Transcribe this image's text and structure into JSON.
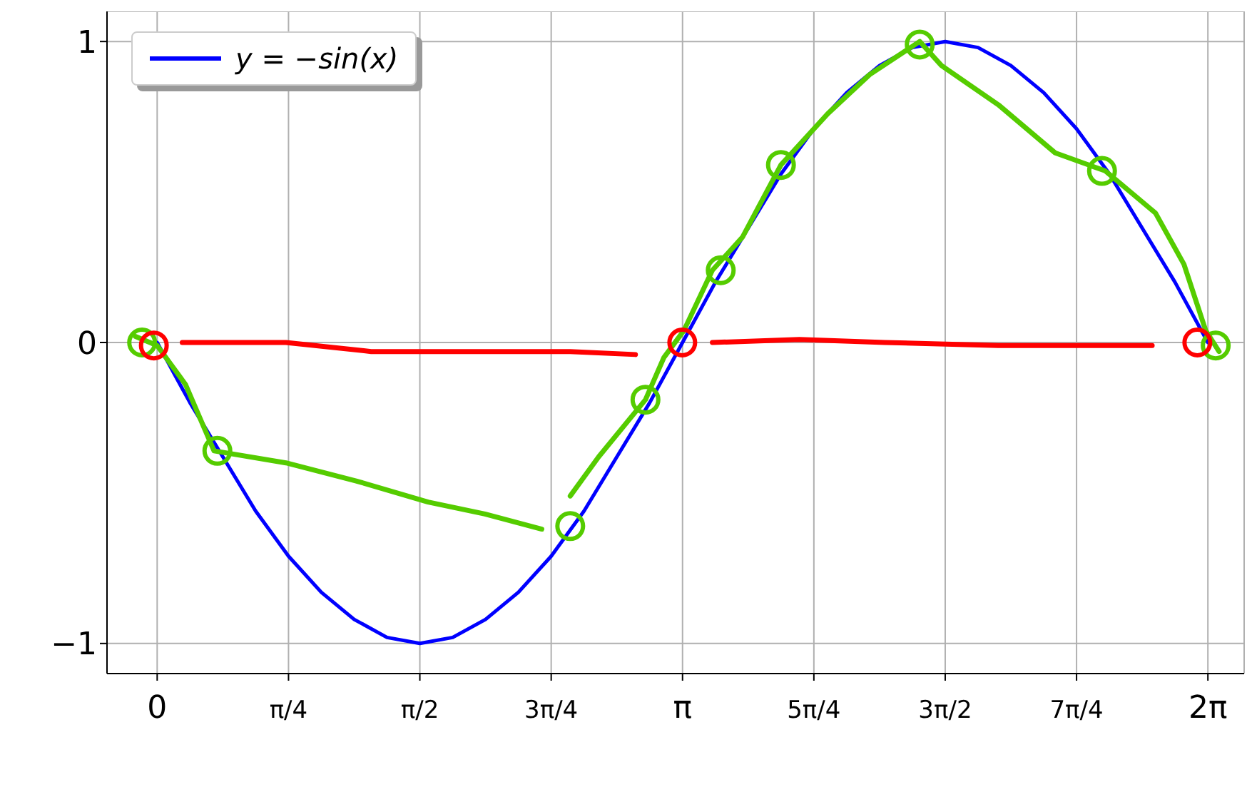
{
  "chart_data": {
    "type": "line",
    "xlim": [
      -0.3,
      6.5
    ],
    "ylim": [
      -1.1,
      1.1
    ],
    "xticks": [
      {
        "value": 0,
        "label": "0"
      },
      {
        "value": 0.7854,
        "label": "π/4"
      },
      {
        "value": 1.5708,
        "label": "π/2"
      },
      {
        "value": 2.3562,
        "label": "3π/4"
      },
      {
        "value": 3.1416,
        "label": "π"
      },
      {
        "value": 3.927,
        "label": "5π/4"
      },
      {
        "value": 4.7124,
        "label": "3π/2"
      },
      {
        "value": 5.4978,
        "label": "7π/4"
      },
      {
        "value": 6.2832,
        "label": "2π"
      }
    ],
    "yticks": [
      {
        "value": -1,
        "label": "−1"
      },
      0,
      1
    ],
    "grid": true,
    "legend": "top left",
    "marker": "none",
    "line_style": "solid",
    "series": [
      {
        "name": "y = −sin(x)",
        "type": "line",
        "color": "#0000ff",
        "x": [
          0,
          0.1963,
          0.3927,
          0.589,
          0.7854,
          0.9817,
          1.1781,
          1.3744,
          1.5708,
          1.7671,
          1.9635,
          2.1598,
          2.3562,
          2.5525,
          2.7489,
          2.9452,
          3.1416,
          3.3379,
          3.5343,
          3.7306,
          3.927,
          4.1233,
          4.3197,
          4.516,
          4.7124,
          4.9087,
          5.1051,
          5.3014,
          5.4978,
          5.6941,
          5.8905,
          6.0868,
          6.2832
        ],
        "values": [
          0,
          -0.2,
          -0.38,
          -0.56,
          -0.71,
          -0.83,
          -0.92,
          -0.98,
          -1,
          -0.98,
          -0.92,
          -0.83,
          -0.71,
          -0.56,
          -0.38,
          -0.2,
          0,
          0.2,
          0.38,
          0.56,
          0.71,
          0.83,
          0.92,
          0.98,
          1,
          0.98,
          0.92,
          0.83,
          0.71,
          0.56,
          0.38,
          0.2,
          0
        ]
      },
      {
        "type": "line",
        "color": "#55cc00",
        "x": [
          -0.13,
          0,
          0.17,
          0.34,
          0.77,
          1.19,
          1.62,
          1.96,
          2.3,
          2.35,
          2.47,
          2.64,
          2.92,
          3.03,
          3.15,
          3.32,
          3.5,
          3.73,
          4.01,
          4.26,
          4.56,
          4.69,
          5.03,
          5.37,
          5.67,
          5.97,
          6.14,
          6.27,
          6.35
        ],
        "values": [
          0.02,
          -0.01,
          -0.14,
          -0.36,
          -0.4,
          -0.46,
          -0.53,
          -0.57,
          -0.62,
          null,
          -0.51,
          -0.38,
          -0.19,
          -0.05,
          0.04,
          0.24,
          0.35,
          0.59,
          0.76,
          0.89,
          1,
          0.92,
          0.79,
          0.63,
          0.57,
          0.43,
          0.26,
          0.04,
          -0.03
        ]
      },
      {
        "type": "line",
        "color": "#ff0000",
        "x": [
          0.15,
          0.77,
          1.28,
          1.88,
          2.47,
          2.86,
          3.1,
          3.32,
          3.84,
          4.35,
          5.03,
          5.95
        ],
        "values": [
          0,
          0,
          -0.03,
          -0.03,
          -0.03,
          -0.04,
          null,
          0,
          0.01,
          0,
          -0.01,
          -0.01
        ]
      },
      {
        "type": "scatter",
        "marker": "circle",
        "color": "#55cc00",
        "x": [
          -0.09,
          0.36,
          2.47,
          2.92,
          3.37,
          3.73,
          4.56,
          5.65,
          6.33
        ],
        "values": [
          0,
          -0.36,
          -0.61,
          -0.19,
          0.24,
          0.59,
          0.99,
          0.57,
          -0.01
        ]
      },
      {
        "type": "scatter",
        "marker": "circle",
        "color": "#ff0000",
        "x": [
          -0.02,
          3.14,
          6.22
        ],
        "values": [
          -0.01,
          0,
          0
        ]
      }
    ]
  }
}
